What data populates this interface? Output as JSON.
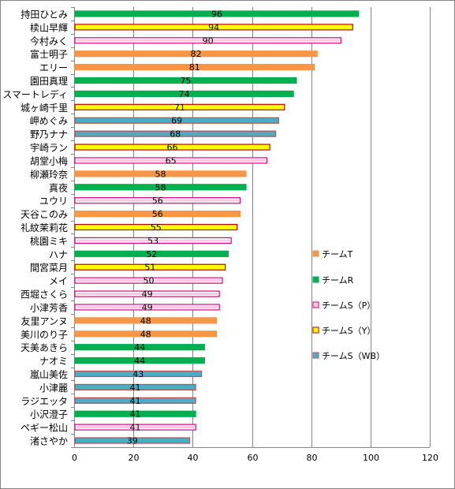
{
  "chart_data": {
    "type": "bar",
    "orientation": "horizontal",
    "xlim": [
      0,
      120
    ],
    "x_ticks": [
      "0",
      "20",
      "40",
      "60",
      "80",
      "100",
      "120"
    ],
    "grid": true,
    "legend_position": "right",
    "colors": {
      "T": {
        "fill": "#f79646",
        "stroke": "#f79646"
      },
      "R": {
        "fill": "#00b050",
        "stroke": "#00b050"
      },
      "SP": {
        "fill": "#ffffff",
        "stroke": "#e0007a",
        "inner": "#ffc7e2"
      },
      "SY": {
        "fill": "#ffff00",
        "stroke": "#c00000"
      },
      "SWB": {
        "fill": "#4bacc6",
        "stroke": "#c0504d"
      }
    },
    "legend": [
      {
        "key": "T",
        "label": "チームT"
      },
      {
        "key": "R",
        "label": "チームR"
      },
      {
        "key": "SP",
        "label": "チームS（P）"
      },
      {
        "key": "SY",
        "label": "チームS（Y）"
      },
      {
        "key": "SWB",
        "label": "チームS（WB）"
      }
    ],
    "bars": [
      {
        "name": "持田ひとみ",
        "value": 96,
        "team": "R"
      },
      {
        "name": "椟山早輝",
        "value": 94,
        "team": "SY"
      },
      {
        "name": "今村みく",
        "value": 90,
        "team": "SP"
      },
      {
        "name": "富士明子",
        "value": 82,
        "team": "T"
      },
      {
        "name": "エリー",
        "value": 81,
        "team": "T"
      },
      {
        "name": "園田真理",
        "value": 75,
        "team": "R"
      },
      {
        "name": "スマートレディ",
        "value": 74,
        "team": "R"
      },
      {
        "name": "城ヶ崎千里",
        "value": 71,
        "team": "SY"
      },
      {
        "name": "岬めぐみ",
        "value": 69,
        "team": "SWB"
      },
      {
        "name": "野乃ナナ",
        "value": 68,
        "team": "SWB"
      },
      {
        "name": "宇崎ラン",
        "value": 66,
        "team": "SY"
      },
      {
        "name": "胡堂小梅",
        "value": 65,
        "team": "SP"
      },
      {
        "name": "柳瀬玲奈",
        "value": 58,
        "team": "T"
      },
      {
        "name": "真夜",
        "value": 58,
        "team": "R"
      },
      {
        "name": "ユウリ",
        "value": 56,
        "team": "SP"
      },
      {
        "name": "天谷このみ",
        "value": 56,
        "team": "T"
      },
      {
        "name": "礼紋茉莉花",
        "value": 55,
        "team": "SY"
      },
      {
        "name": "桃園ミキ",
        "value": 53,
        "team": "SP"
      },
      {
        "name": "ハナ",
        "value": 52,
        "team": "R"
      },
      {
        "name": "間宮菜月",
        "value": 51,
        "team": "SY"
      },
      {
        "name": "メイ",
        "value": 50,
        "team": "SP"
      },
      {
        "name": "西堀さくら",
        "value": 49,
        "team": "SP"
      },
      {
        "name": "小津芳香",
        "value": 49,
        "team": "SP"
      },
      {
        "name": "友里アンヌ",
        "value": 48,
        "team": "T"
      },
      {
        "name": "美川のり子",
        "value": 48,
        "team": "T"
      },
      {
        "name": "天美あきら",
        "value": 44,
        "team": "R"
      },
      {
        "name": "ナオミ",
        "value": 44,
        "team": "R"
      },
      {
        "name": "嵐山美佐",
        "value": 43,
        "team": "SWB"
      },
      {
        "name": "小津麗",
        "value": 41,
        "team": "SWB"
      },
      {
        "name": "ラジエッタ",
        "value": 41,
        "team": "SWB"
      },
      {
        "name": "小沢澄子",
        "value": 41,
        "team": "R"
      },
      {
        "name": "ペギー松山",
        "value": 41,
        "team": "SP"
      },
      {
        "name": "渚さやか",
        "value": 39,
        "team": "SWB"
      }
    ]
  }
}
